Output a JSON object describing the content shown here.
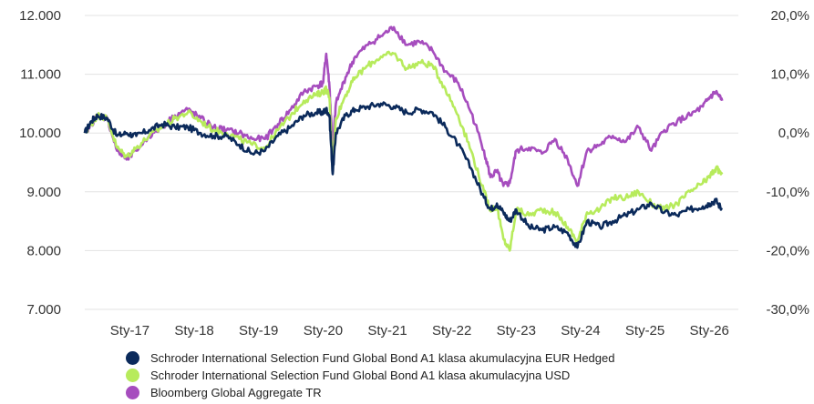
{
  "chart_data": {
    "type": "line",
    "title": "",
    "xlabel": "",
    "ylabel": "",
    "x_range": [
      2016.3,
      2026.45
    ],
    "x_ticks": [
      {
        "label": "Sty-17",
        "x": 2017.0
      },
      {
        "label": "Sty-18",
        "x": 2018.0
      },
      {
        "label": "Sty-19",
        "x": 2019.0
      },
      {
        "label": "Sty-20",
        "x": 2020.0
      },
      {
        "label": "Sty-21",
        "x": 2021.0
      },
      {
        "label": "Sty-22",
        "x": 2022.0
      },
      {
        "label": "Sty-23",
        "x": 2023.0
      },
      {
        "label": "Sty-24",
        "x": 2024.0
      },
      {
        "label": "Sty-25",
        "x": 2025.0
      },
      {
        "label": "Sty-26",
        "x": 2026.0
      }
    ],
    "ylim_left": [
      7000,
      12000
    ],
    "y_left_ticks": [
      "7.000",
      "8.000",
      "9.000",
      "10.000",
      "11.000",
      "12.000"
    ],
    "y_left_values": [
      7000,
      8000,
      9000,
      10000,
      11000,
      12000
    ],
    "ylim_right": [
      -30,
      20
    ],
    "y_right_ticks": [
      "-30,0%",
      "-20,0%",
      "-10,0%",
      "0,0%",
      "10,0%",
      "20,0%"
    ],
    "y_right_values": [
      -30,
      -20,
      -10,
      0,
      10,
      20
    ],
    "grid": "horizontal",
    "legend_position": "bottom",
    "series": [
      {
        "name": "Schroder International Selection Fund Global Bond A1 klasa akumulacyjna EUR Hedged",
        "color": "#0b2a5b",
        "x": [
          2016.3,
          2016.4,
          2016.5,
          2016.65,
          2016.8,
          2016.95,
          2017.1,
          2017.3,
          2017.5,
          2017.7,
          2017.9,
          2018.1,
          2018.3,
          2018.5,
          2018.7,
          2018.9,
          2019.1,
          2019.3,
          2019.5,
          2019.7,
          2019.9,
          2020.0,
          2020.05,
          2020.1,
          2020.15,
          2020.2,
          2020.35,
          2020.5,
          2020.7,
          2020.9,
          2021.1,
          2021.3,
          2021.5,
          2021.7,
          2021.9,
          2022.1,
          2022.3,
          2022.5,
          2022.6,
          2022.7,
          2022.8,
          2022.9,
          2023.0,
          2023.2,
          2023.4,
          2023.6,
          2023.8,
          2023.95,
          2024.1,
          2024.3,
          2024.5,
          2024.7,
          2024.9,
          2025.1,
          2025.3,
          2025.5,
          2025.7,
          2025.9,
          2026.0,
          2026.1,
          2026.2
        ],
        "values": [
          10000,
          10200,
          10300,
          10250,
          9950,
          10000,
          9950,
          10050,
          10150,
          10100,
          10100,
          10000,
          9950,
          9950,
          9800,
          9650,
          9700,
          9950,
          10100,
          10300,
          10350,
          10350,
          10400,
          10300,
          9300,
          10000,
          10300,
          10400,
          10450,
          10500,
          10450,
          10350,
          10400,
          10350,
          10100,
          9800,
          9400,
          8900,
          8700,
          8800,
          8650,
          8500,
          8700,
          8400,
          8350,
          8400,
          8300,
          8050,
          8500,
          8400,
          8500,
          8600,
          8700,
          8800,
          8650,
          8600,
          8700,
          8750,
          8800,
          8850,
          8700
        ]
      },
      {
        "name": "Schroder International Selection Fund Global Bond A1 klasa akumulacyjna USD",
        "color": "#b7eb5c",
        "x": [
          2016.3,
          2016.4,
          2016.5,
          2016.65,
          2016.8,
          2016.95,
          2017.1,
          2017.3,
          2017.5,
          2017.7,
          2017.9,
          2018.1,
          2018.3,
          2018.5,
          2018.7,
          2018.9,
          2019.1,
          2019.3,
          2019.5,
          2019.7,
          2019.9,
          2020.0,
          2020.05,
          2020.1,
          2020.15,
          2020.2,
          2020.35,
          2020.5,
          2020.7,
          2020.9,
          2021.1,
          2021.3,
          2021.5,
          2021.7,
          2021.9,
          2022.1,
          2022.3,
          2022.5,
          2022.6,
          2022.7,
          2022.8,
          2022.9,
          2023.0,
          2023.2,
          2023.4,
          2023.6,
          2023.8,
          2023.95,
          2024.1,
          2024.3,
          2024.5,
          2024.7,
          2024.9,
          2025.1,
          2025.3,
          2025.5,
          2025.7,
          2025.9,
          2026.0,
          2026.1,
          2026.2
        ],
        "values": [
          10000,
          10150,
          10300,
          10250,
          9750,
          9600,
          9750,
          9950,
          10100,
          10250,
          10350,
          10200,
          10050,
          10000,
          9900,
          9800,
          9750,
          10050,
          10300,
          10550,
          10650,
          10700,
          10750,
          10600,
          9400,
          10250,
          10650,
          10950,
          11150,
          11300,
          11350,
          11100,
          11200,
          11150,
          10750,
          10300,
          9700,
          9000,
          8700,
          8750,
          8200,
          8000,
          8700,
          8600,
          8700,
          8650,
          8400,
          8150,
          8650,
          8700,
          8900,
          8900,
          9000,
          8800,
          8700,
          8800,
          9000,
          9150,
          9250,
          9400,
          9300
        ]
      },
      {
        "name": "Bloomberg Global Aggregate TR",
        "color": "#a64dbe",
        "x": [
          2016.3,
          2016.4,
          2016.5,
          2016.65,
          2016.8,
          2016.95,
          2017.1,
          2017.3,
          2017.5,
          2017.7,
          2017.9,
          2018.1,
          2018.3,
          2018.5,
          2018.7,
          2018.9,
          2019.1,
          2019.3,
          2019.5,
          2019.7,
          2019.9,
          2020.0,
          2020.05,
          2020.1,
          2020.15,
          2020.2,
          2020.35,
          2020.5,
          2020.7,
          2020.9,
          2021.1,
          2021.3,
          2021.5,
          2021.7,
          2021.9,
          2022.1,
          2022.3,
          2022.5,
          2022.6,
          2022.7,
          2022.8,
          2022.9,
          2023.0,
          2023.2,
          2023.4,
          2023.6,
          2023.8,
          2023.95,
          2024.1,
          2024.3,
          2024.5,
          2024.7,
          2024.9,
          2025.1,
          2025.3,
          2025.5,
          2025.7,
          2025.9,
          2026.0,
          2026.1,
          2026.2
        ],
        "values": [
          10000,
          10150,
          10300,
          10250,
          9700,
          9550,
          9700,
          9950,
          10100,
          10300,
          10400,
          10250,
          10100,
          10050,
          10000,
          9900,
          9900,
          10150,
          10400,
          10700,
          10800,
          10850,
          11350,
          10800,
          9700,
          10500,
          10950,
          11300,
          11500,
          11650,
          11800,
          11500,
          11550,
          11400,
          11050,
          10850,
          10350,
          9700,
          9250,
          9350,
          9100,
          9150,
          9700,
          9750,
          9650,
          9900,
          9550,
          9100,
          9700,
          9800,
          9950,
          9850,
          10100,
          9700,
          10050,
          10200,
          10300,
          10450,
          10600,
          10700,
          10550
        ]
      }
    ]
  }
}
